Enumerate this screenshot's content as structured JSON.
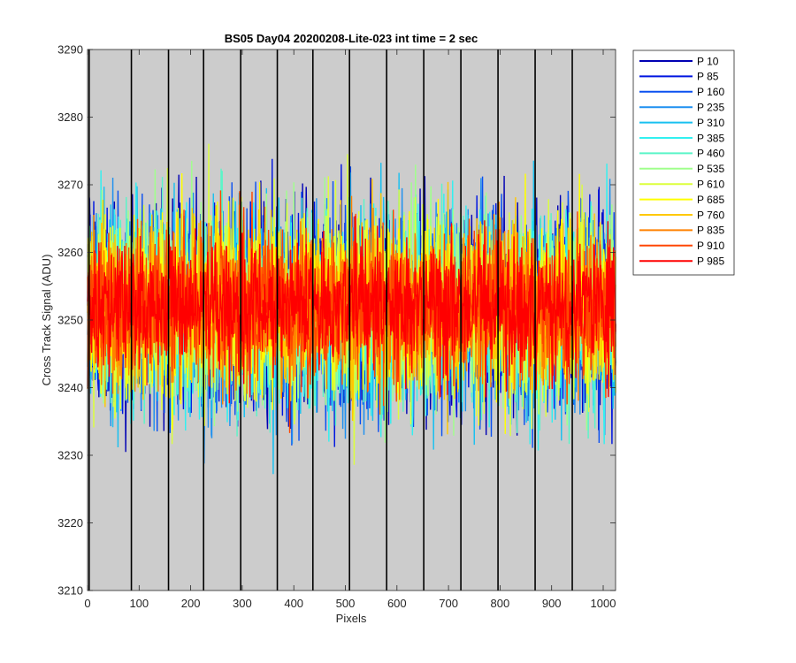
{
  "chart_data": {
    "type": "line",
    "title": "BS05 Day04 20200208-Lite-023 int time = 2 sec",
    "xlabel": "Pixels",
    "ylabel": "Cross Track Signal (ADU)",
    "xlim": [
      0,
      1024
    ],
    "ylim": [
      3210,
      3290
    ],
    "xticks": [
      0,
      100,
      200,
      300,
      400,
      500,
      600,
      700,
      800,
      900,
      1000
    ],
    "yticks": [
      3210,
      3220,
      3230,
      3240,
      3250,
      3260,
      3270,
      3280,
      3290
    ],
    "background_color": "#cccccc",
    "grid": false,
    "legend_position": "outside-top-right",
    "boundary_lines_x": [
      3,
      85,
      157,
      225,
      297,
      368,
      437,
      508,
      580,
      652,
      724,
      796,
      868,
      940
    ],
    "boundary_line_color": "#000000",
    "series": [
      {
        "name": "P 10",
        "color": "#0000b4",
        "mean": 3251,
        "spread": 7.2,
        "min": 3229,
        "max": 3272
      },
      {
        "name": "P 85",
        "color": "#0015e0",
        "mean": 3251,
        "spread": 7.2,
        "min": 3226,
        "max": 3275
      },
      {
        "name": "P 160",
        "color": "#0a50f0",
        "mean": 3251,
        "spread": 7.0,
        "min": 3227,
        "max": 3273
      },
      {
        "name": "P 235",
        "color": "#1e90f0",
        "mean": 3251,
        "spread": 7.0,
        "min": 3228,
        "max": 3273
      },
      {
        "name": "P 310",
        "color": "#19c0f0",
        "mean": 3251,
        "spread": 7.0,
        "min": 3226,
        "max": 3274
      },
      {
        "name": "P 385",
        "color": "#32f0f0",
        "mean": 3251,
        "spread": 7.0,
        "min": 3224,
        "max": 3277
      },
      {
        "name": "P 460",
        "color": "#5af5c8",
        "mean": 3251,
        "spread": 7.0,
        "min": 3223,
        "max": 3278
      },
      {
        "name": "P 535",
        "color": "#a0ff8c",
        "mean": 3252,
        "spread": 6.8,
        "min": 3225,
        "max": 3281
      },
      {
        "name": "P 610",
        "color": "#dcff3c",
        "mean": 3252,
        "spread": 6.6,
        "min": 3219,
        "max": 3281
      },
      {
        "name": "P 685",
        "color": "#ffff00",
        "mean": 3252,
        "spread": 6.2,
        "min": 3229,
        "max": 3276
      },
      {
        "name": "P 760",
        "color": "#ffc800",
        "mean": 3252,
        "spread": 6.0,
        "min": 3229,
        "max": 3275
      },
      {
        "name": "P 835",
        "color": "#ff8200",
        "mean": 3252,
        "spread": 5.6,
        "min": 3227,
        "max": 3272
      },
      {
        "name": "P 910",
        "color": "#ff4600",
        "mean": 3252,
        "spread": 5.2,
        "min": 3227,
        "max": 3271
      },
      {
        "name": "P 985",
        "color": "#ff0000",
        "mean": 3252,
        "spread": 4.8,
        "min": 3229,
        "max": 3279
      }
    ]
  }
}
